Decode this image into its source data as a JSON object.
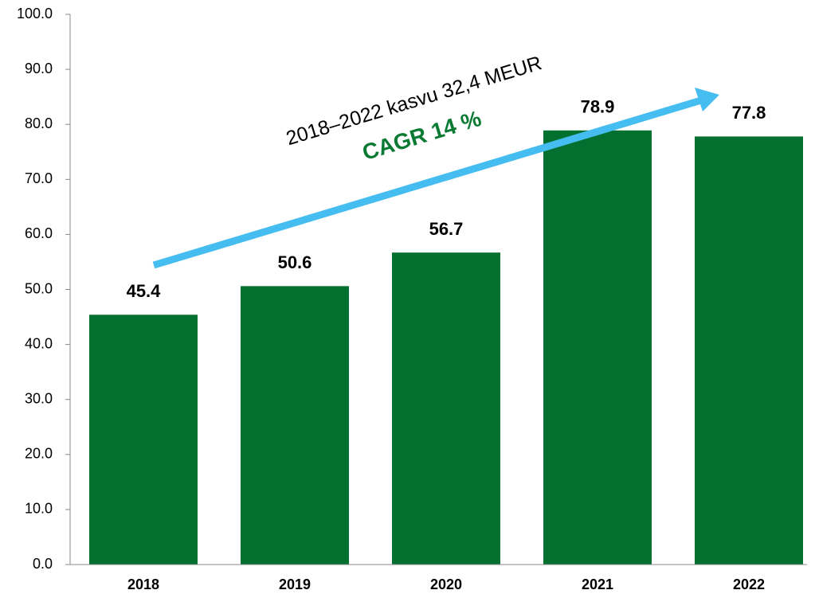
{
  "chart_data": {
    "type": "bar",
    "categories": [
      "2018",
      "2019",
      "2020",
      "2021",
      "2022"
    ],
    "values": [
      45.4,
      50.6,
      56.7,
      78.9,
      77.8
    ],
    "color": "#04702f",
    "ylim": [
      0,
      100
    ],
    "yticks": [
      {
        "value": 0,
        "label": "0.0"
      },
      {
        "value": 10,
        "label": "10.0"
      },
      {
        "value": 20,
        "label": "20.0"
      },
      {
        "value": 30,
        "label": "30.0"
      },
      {
        "value": 40,
        "label": "40.0"
      },
      {
        "value": 50,
        "label": "50.0"
      },
      {
        "value": 60,
        "label": "60.0"
      },
      {
        "value": 70,
        "label": "70.0"
      },
      {
        "value": 80,
        "label": "80.0"
      },
      {
        "value": 90,
        "label": "90.0"
      },
      {
        "value": 100,
        "label": "100.0"
      }
    ],
    "grid": false,
    "annotations": [
      "2018–2022 kasvu 32,4 MEUR",
      "CAGR 14 %"
    ]
  }
}
